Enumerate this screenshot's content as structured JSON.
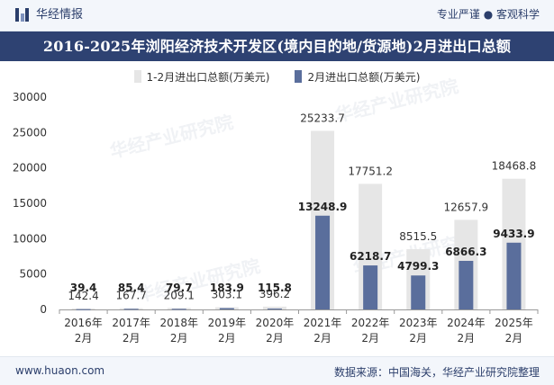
{
  "header": {
    "logo_text": "华经情报",
    "tagline": "专业严谨 ● 客观科学"
  },
  "watermark_text": "华经产业研究院",
  "colors": {
    "header_bg": "#2e4272",
    "series_total": "#e6e6e6",
    "series_month": "#5a6e9c"
  },
  "footer": {
    "website": "www.huaon.com",
    "source": "数据来源：中国海关，华经产业研究院整理"
  },
  "chart_data": {
    "type": "bar",
    "title": "2016-2025年浏阳经济技术开发区(境内目的地/货源地)2月进出口总额",
    "categories": [
      [
        "2016年",
        "2月"
      ],
      [
        "2017年",
        "2月"
      ],
      [
        "2018年",
        "2月"
      ],
      [
        "2019年",
        "2月"
      ],
      [
        "2020年",
        "2月"
      ],
      [
        "2021年",
        "2月"
      ],
      [
        "2022年",
        "2月"
      ],
      [
        "2023年",
        "2月"
      ],
      [
        "2024年",
        "2月"
      ],
      [
        "2025年",
        "2月"
      ]
    ],
    "series": [
      {
        "name": "1-2月进出口总额(万美元)",
        "color": "#e6e6e6",
        "values": [
          142.4,
          167.7,
          209.1,
          303.1,
          396.2,
          25233.7,
          17751.2,
          8515.5,
          12657.9,
          18468.8
        ],
        "labels": [
          "142.4",
          "167.7",
          "209.1",
          "303.1",
          "396.2",
          "25233.7",
          "17751.2",
          "8515.5",
          "12657.9",
          "18468.8"
        ]
      },
      {
        "name": "2月进出口总额(万美元)",
        "color": "#5a6e9c",
        "values": [
          39.4,
          85.4,
          79.7,
          183.9,
          115.8,
          13248.9,
          6218.7,
          4799.3,
          6866.3,
          9433.9
        ],
        "labels": [
          "39.4",
          "85.4",
          "79.7",
          "183.9",
          "115.8",
          "13248.9",
          "6218.7",
          "4799.3",
          "6866.3",
          "9433.9"
        ]
      }
    ],
    "ylim": [
      0,
      30000
    ],
    "yticks": [
      "0",
      "5000",
      "10000",
      "15000",
      "20000",
      "25000",
      "30000"
    ],
    "legend": "top-center",
    "grid": false
  }
}
